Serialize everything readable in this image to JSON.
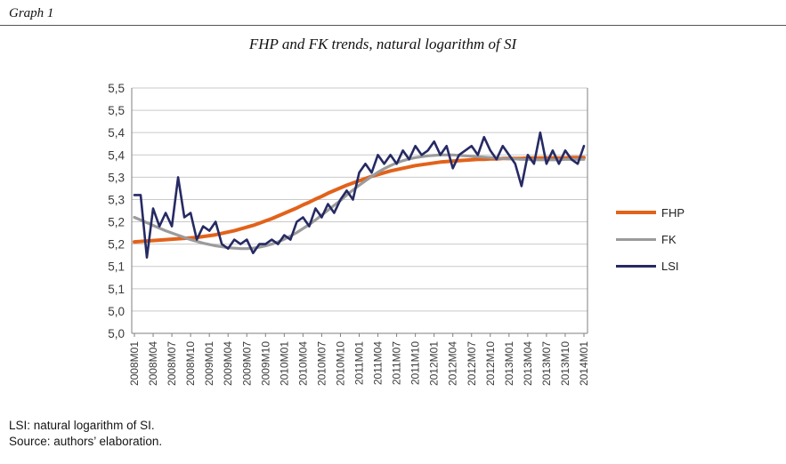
{
  "page": {
    "graph_label": "Graph 1",
    "note_lsi": "LSI: natural logarithm of SI.",
    "note_source": "Source: authors’ elaboration."
  },
  "chart_data": {
    "type": "line",
    "title": "FHP and FK trends, natural logarithm of SI",
    "x_tick_labels": [
      "2008M01",
      "2008M04",
      "2008M07",
      "2008M10",
      "2009M01",
      "2009M04",
      "2009M07",
      "2009M10",
      "2010M01",
      "2010M04",
      "2010M07",
      "2010M10",
      "2011M01",
      "2011M04",
      "2011M07",
      "2011M10",
      "2012M01",
      "2012M04",
      "2012M07",
      "2012M10",
      "2013M01",
      "2013M04",
      "2013M07",
      "2013M10",
      "2014M01"
    ],
    "x_tick_every": 3,
    "n_points": 73,
    "ylim": [
      5.0,
      5.55
    ],
    "y_tick_values": [
      5.55,
      5.5,
      5.45,
      5.4,
      5.35,
      5.3,
      5.25,
      5.2,
      5.15,
      5.1,
      5.05,
      5.0
    ],
    "y_tick_labels": [
      "5,5",
      "5,5",
      "5,4",
      "5,4",
      "5,3",
      "5,3",
      "5,2",
      "5,2",
      "5,1",
      "5,1",
      "5,0",
      "5,0"
    ],
    "grid": "horizontal",
    "legend_position": "right",
    "colors": {
      "grid": "#C9C9C9",
      "axis": "#7F7F7F",
      "text": "#3A3A3A"
    },
    "series": [
      {
        "name": "FHP",
        "color": "#E2621B",
        "width": 4,
        "values": [
          5.205,
          5.206,
          5.207,
          5.208,
          5.209,
          5.21,
          5.211,
          5.212,
          5.213,
          5.214,
          5.215,
          5.217,
          5.219,
          5.221,
          5.224,
          5.227,
          5.23,
          5.234,
          5.238,
          5.242,
          5.247,
          5.252,
          5.257,
          5.263,
          5.269,
          5.275,
          5.281,
          5.288,
          5.294,
          5.301,
          5.307,
          5.314,
          5.32,
          5.326,
          5.332,
          5.337,
          5.342,
          5.347,
          5.352,
          5.356,
          5.36,
          5.364,
          5.367,
          5.37,
          5.373,
          5.376,
          5.378,
          5.38,
          5.382,
          5.384,
          5.385,
          5.386,
          5.387,
          5.388,
          5.389,
          5.39,
          5.39,
          5.391,
          5.391,
          5.392,
          5.392,
          5.392,
          5.392,
          5.393,
          5.393,
          5.393,
          5.393,
          5.393,
          5.393,
          5.393,
          5.394,
          5.394,
          5.394
        ]
      },
      {
        "name": "FK",
        "color": "#9B9B9B",
        "width": 3.2,
        "values": [
          5.26,
          5.254,
          5.248,
          5.242,
          5.236,
          5.23,
          5.225,
          5.22,
          5.215,
          5.21,
          5.206,
          5.202,
          5.199,
          5.196,
          5.194,
          5.192,
          5.191,
          5.19,
          5.19,
          5.191,
          5.193,
          5.196,
          5.2,
          5.205,
          5.211,
          5.218,
          5.226,
          5.235,
          5.244,
          5.254,
          5.265,
          5.276,
          5.287,
          5.298,
          5.31,
          5.321,
          5.332,
          5.342,
          5.352,
          5.361,
          5.369,
          5.376,
          5.382,
          5.387,
          5.391,
          5.394,
          5.396,
          5.398,
          5.399,
          5.4,
          5.4,
          5.4,
          5.399,
          5.398,
          5.397,
          5.396,
          5.395,
          5.394,
          5.393,
          5.392,
          5.391,
          5.391,
          5.39,
          5.39,
          5.389,
          5.389,
          5.389,
          5.389,
          5.389,
          5.39,
          5.39,
          5.39,
          5.39
        ]
      },
      {
        "name": "LSI",
        "color": "#262A63",
        "width": 2.6,
        "values": [
          5.31,
          5.31,
          5.17,
          5.28,
          5.24,
          5.27,
          5.24,
          5.35,
          5.26,
          5.27,
          5.21,
          5.24,
          5.23,
          5.25,
          5.2,
          5.19,
          5.21,
          5.2,
          5.21,
          5.18,
          5.2,
          5.2,
          5.21,
          5.2,
          5.22,
          5.21,
          5.25,
          5.26,
          5.24,
          5.28,
          5.26,
          5.29,
          5.27,
          5.3,
          5.32,
          5.3,
          5.36,
          5.38,
          5.36,
          5.4,
          5.38,
          5.4,
          5.38,
          5.41,
          5.39,
          5.42,
          5.4,
          5.41,
          5.43,
          5.4,
          5.42,
          5.37,
          5.4,
          5.41,
          5.42,
          5.4,
          5.44,
          5.41,
          5.39,
          5.42,
          5.4,
          5.38,
          5.33,
          5.4,
          5.38,
          5.45,
          5.38,
          5.41,
          5.38,
          5.41,
          5.39,
          5.38,
          5.42
        ]
      }
    ]
  }
}
